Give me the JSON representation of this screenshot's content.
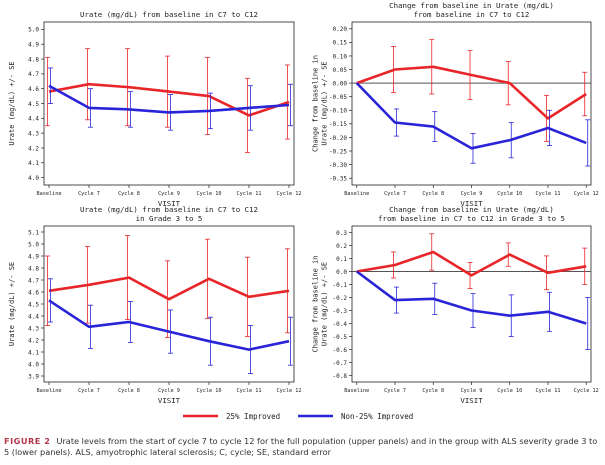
{
  "figure": {
    "legend": [
      {
        "label": "25% Improved",
        "color": "#e8262a"
      },
      {
        "label": "Non-25% Improved",
        "color": "#2a24d8"
      }
    ],
    "caption_label": "FIGURE 2",
    "caption_text": "Urate levels from the start of cycle 7 to cycle 12 for the full population (upper panels) and in the group with ALS severity grade 3 to 5 (lower panels). ALS, amyotrophic lateral sclerosis; C, cycle; SE, standard error"
  },
  "colors": {
    "improved": "#e8262a",
    "non_improved": "#2a24d8",
    "zero_line": "#555555",
    "axis": "#222222"
  },
  "chart_data": [
    {
      "type": "line",
      "title": [
        "Urate (mg/dL) from baseline in C7 to C12"
      ],
      "xlabel": "VISIT",
      "ylabel": [
        "Urate (mg/dL) +/- SE"
      ],
      "categories": [
        "Baseline",
        "Cycle 7",
        "Cycle 8",
        "Cycle 9",
        "Cycle 10",
        "Cycle 11",
        "Cycle 12"
      ],
      "ylim": [
        3.95,
        5.05
      ],
      "yticks": [
        4.0,
        4.1,
        4.2,
        4.3,
        4.4,
        4.5,
        4.6,
        4.7,
        4.8,
        4.9,
        5.0
      ],
      "ytick_labels": [
        "4.0",
        "4.1",
        "4.2",
        "4.3",
        "4.4",
        "4.5",
        "4.6",
        "4.7",
        "4.8",
        "4.9",
        "5.0"
      ],
      "zero_line": false,
      "series": [
        {
          "name": "25% Improved",
          "values": [
            4.58,
            4.63,
            4.61,
            4.58,
            4.55,
            4.42,
            4.51
          ],
          "se": [
            0.23,
            0.24,
            0.26,
            0.24,
            0.26,
            0.25,
            0.25
          ]
        },
        {
          "name": "Non-25% Improved",
          "values": [
            4.62,
            4.47,
            4.46,
            4.44,
            4.45,
            4.47,
            4.49
          ],
          "se": [
            0.12,
            0.13,
            0.12,
            0.12,
            0.12,
            0.15,
            0.14
          ]
        }
      ]
    },
    {
      "type": "line",
      "title": [
        "Change from baseline in Urate (mg/dL)",
        "from baseline in C7 to C12"
      ],
      "xlabel": "VISIT",
      "ylabel": [
        "Change from baseline in",
        "Urate (mg/dL) +/- SE"
      ],
      "categories": [
        "Baseline",
        "Cycle 7",
        "Cycle 8",
        "Cycle 9",
        "Cycle 10",
        "Cycle 11",
        "Cycle 12"
      ],
      "ylim": [
        -0.375,
        0.225
      ],
      "yticks": [
        -0.35,
        -0.3,
        -0.25,
        -0.2,
        -0.15,
        -0.1,
        -0.05,
        0.0,
        0.05,
        0.1,
        0.15,
        0.2
      ],
      "ytick_labels": [
        "-0.35",
        "-0.30",
        "-0.25",
        "-0.20",
        "-0.15",
        "-0.10",
        "-0.05",
        "0.00",
        "0.05",
        "0.10",
        "0.15",
        "0.20"
      ],
      "zero_line": true,
      "series": [
        {
          "name": "25% Improved",
          "values": [
            0.0,
            0.05,
            0.06,
            0.03,
            0.0,
            -0.13,
            -0.04
          ],
          "se": [
            0.0,
            0.085,
            0.1,
            0.09,
            0.08,
            0.085,
            0.08
          ]
        },
        {
          "name": "Non-25% Improved",
          "values": [
            0.0,
            -0.145,
            -0.16,
            -0.24,
            -0.21,
            -0.165,
            -0.22
          ],
          "se": [
            0.0,
            0.05,
            0.055,
            0.055,
            0.065,
            0.065,
            0.085
          ]
        }
      ]
    },
    {
      "type": "line",
      "title": [
        "Urate (mg/dL) from baseline in C7 to C12",
        "in Grade 3 to 5"
      ],
      "xlabel": "VISIT",
      "ylabel": [
        "Urate (mg/dL) +/- SE"
      ],
      "categories": [
        "Baseline",
        "Cycle 7",
        "Cycle 8",
        "Cycle 9",
        "Cycle 10",
        "Cycle 11",
        "Cycle 12"
      ],
      "ylim": [
        3.85,
        5.15
      ],
      "yticks": [
        3.9,
        4.0,
        4.1,
        4.2,
        4.3,
        4.4,
        4.5,
        4.6,
        4.7,
        4.8,
        4.9,
        5.0,
        5.1
      ],
      "ytick_labels": [
        "3.9",
        "4.0",
        "4.1",
        "4.2",
        "4.3",
        "4.4",
        "4.5",
        "4.6",
        "4.7",
        "4.8",
        "4.9",
        "5.0",
        "5.1"
      ],
      "zero_line": false,
      "series": [
        {
          "name": "25% Improved",
          "values": [
            4.61,
            4.66,
            4.72,
            4.54,
            4.71,
            4.56,
            4.61
          ],
          "se": [
            0.29,
            0.32,
            0.35,
            0.32,
            0.33,
            0.33,
            0.35
          ]
        },
        {
          "name": "Non-25% Improved",
          "values": [
            4.53,
            4.31,
            4.35,
            4.27,
            4.19,
            4.12,
            4.19
          ],
          "se": [
            0.18,
            0.18,
            0.17,
            0.18,
            0.2,
            0.2,
            0.2
          ]
        }
      ]
    },
    {
      "type": "line",
      "title": [
        "Change from baseline in Urate (mg/dL)",
        "from baseline in C7 to C12 in Grade 3 to 5"
      ],
      "xlabel": "VISIT",
      "ylabel": [
        "Change from baseline in",
        "Urate (mg/dL) +/- SE"
      ],
      "categories": [
        "Baseline",
        "Cycle 7",
        "Cycle 8",
        "Cycle 9",
        "Cycle 10",
        "Cycle 11",
        "Cycle 12"
      ],
      "ylim": [
        -0.85,
        0.35
      ],
      "yticks": [
        -0.8,
        -0.7,
        -0.6,
        -0.5,
        -0.4,
        -0.3,
        -0.2,
        -0.1,
        0.0,
        0.1,
        0.2,
        0.3
      ],
      "ytick_labels": [
        "-0.8",
        "-0.7",
        "-0.6",
        "-0.5",
        "-0.4",
        "-0.3",
        "-0.2",
        "-0.1",
        "0.0",
        "0.1",
        "0.2",
        "0.3"
      ],
      "zero_line": true,
      "series": [
        {
          "name": "25% Improved",
          "values": [
            0.0,
            0.05,
            0.15,
            -0.03,
            0.13,
            -0.01,
            0.04
          ],
          "se": [
            0.0,
            0.1,
            0.14,
            0.1,
            0.09,
            0.13,
            0.14
          ]
        },
        {
          "name": "Non-25% Improved",
          "values": [
            0.0,
            -0.22,
            -0.21,
            -0.3,
            -0.34,
            -0.31,
            -0.4
          ],
          "se": [
            0.0,
            0.1,
            0.12,
            0.13,
            0.16,
            0.15,
            0.2
          ]
        }
      ]
    }
  ]
}
